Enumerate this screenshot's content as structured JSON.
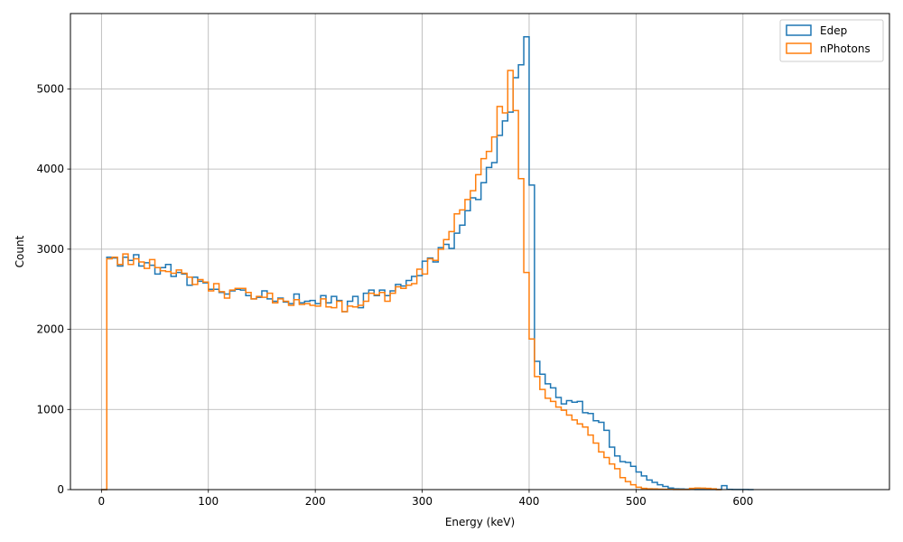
{
  "chart_data": {
    "type": "histogram",
    "xlabel": "Energy (keV)",
    "ylabel": "Count",
    "xlim": [
      -29,
      737
    ],
    "ylim": [
      0,
      5940
    ],
    "x_ticks": [
      0,
      100,
      200,
      300,
      400,
      500,
      600
    ],
    "y_ticks": [
      0,
      1000,
      2000,
      3000,
      4000,
      5000
    ],
    "grid": true,
    "legend": {
      "placement": "top-right",
      "entries": [
        "Edep",
        "nPhotons"
      ]
    },
    "bin_start": 0,
    "bin_width": 5,
    "series": [
      {
        "name": "Edep",
        "color": "#1f77b4",
        "values": [
          0,
          2900,
          2890,
          2790,
          2900,
          2860,
          2930,
          2790,
          2830,
          2800,
          2690,
          2770,
          2810,
          2660,
          2710,
          2690,
          2550,
          2650,
          2600,
          2580,
          2500,
          2500,
          2460,
          2440,
          2480,
          2500,
          2490,
          2420,
          2380,
          2400,
          2480,
          2380,
          2350,
          2390,
          2340,
          2320,
          2440,
          2330,
          2350,
          2360,
          2320,
          2420,
          2330,
          2410,
          2360,
          2220,
          2350,
          2410,
          2270,
          2450,
          2490,
          2420,
          2490,
          2420,
          2480,
          2560,
          2540,
          2610,
          2660,
          2670,
          2850,
          2890,
          2840,
          3020,
          3060,
          3010,
          3200,
          3300,
          3480,
          3640,
          3620,
          3830,
          4020,
          4080,
          4420,
          4600,
          4710,
          5140,
          5300,
          5650,
          3800,
          1600,
          1440,
          1320,
          1270,
          1150,
          1070,
          1110,
          1090,
          1100,
          960,
          950,
          860,
          840,
          740,
          530,
          420,
          350,
          340,
          290,
          220,
          170,
          120,
          90,
          60,
          40,
          20,
          10,
          8,
          5,
          3,
          2,
          2,
          1,
          2,
          1,
          50,
          3,
          2,
          1,
          1,
          0
        ],
        "end_value": 0
      },
      {
        "name": "nPhotons",
        "color": "#ff7f0e",
        "values": [
          0,
          2880,
          2900,
          2810,
          2940,
          2810,
          2880,
          2840,
          2760,
          2870,
          2770,
          2730,
          2720,
          2700,
          2740,
          2700,
          2650,
          2560,
          2620,
          2590,
          2480,
          2570,
          2470,
          2390,
          2490,
          2510,
          2510,
          2460,
          2380,
          2410,
          2400,
          2450,
          2330,
          2380,
          2350,
          2300,
          2370,
          2310,
          2320,
          2300,
          2290,
          2380,
          2280,
          2270,
          2350,
          2220,
          2290,
          2280,
          2300,
          2350,
          2450,
          2430,
          2460,
          2350,
          2450,
          2530,
          2510,
          2550,
          2570,
          2750,
          2690,
          2880,
          2860,
          3000,
          3120,
          3220,
          3440,
          3490,
          3620,
          3730,
          3930,
          4130,
          4220,
          4400,
          4780,
          4700,
          5230,
          4730,
          3880,
          2710,
          1880,
          1410,
          1250,
          1140,
          1100,
          1030,
          990,
          930,
          870,
          820,
          780,
          680,
          580,
          470,
          400,
          320,
          260,
          150,
          100,
          60,
          30,
          15,
          10,
          8,
          5,
          4,
          3,
          2,
          2,
          1,
          15,
          20,
          18,
          15,
          10,
          0
        ],
        "end_value": 0
      }
    ]
  }
}
